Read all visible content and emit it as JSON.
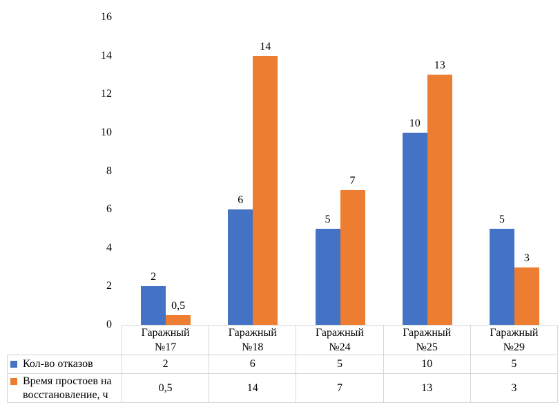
{
  "chart_data": {
    "type": "bar",
    "categories": [
      "Гаражный №17",
      "Гаражный №18",
      "Гаражный №24",
      "Гаражный №25",
      "Гаражный №29"
    ],
    "series": [
      {
        "name": "Кол-во отказов",
        "color": "#4472C4",
        "values": [
          2,
          6,
          5,
          10,
          5
        ],
        "labels": [
          "2",
          "6",
          "5",
          "10",
          "5"
        ]
      },
      {
        "name": "Время простоев на восстановление, ч",
        "color": "#ED7D31",
        "values": [
          0.5,
          14,
          7,
          13,
          3
        ],
        "labels": [
          "0,5",
          "14",
          "7",
          "13",
          "3"
        ]
      }
    ],
    "title": "",
    "xlabel": "",
    "ylabel": "",
    "ylim": [
      0,
      16
    ],
    "yticks": [
      0,
      2,
      4,
      6,
      8,
      10,
      12,
      14,
      16
    ],
    "grid": false,
    "legend_position": "table-row-headers",
    "colors": {
      "background": "#FFFFFF",
      "text": "#000000",
      "table_border": "#D6D6D6",
      "series1": "#4472C4",
      "series2": "#ED7D31"
    }
  }
}
